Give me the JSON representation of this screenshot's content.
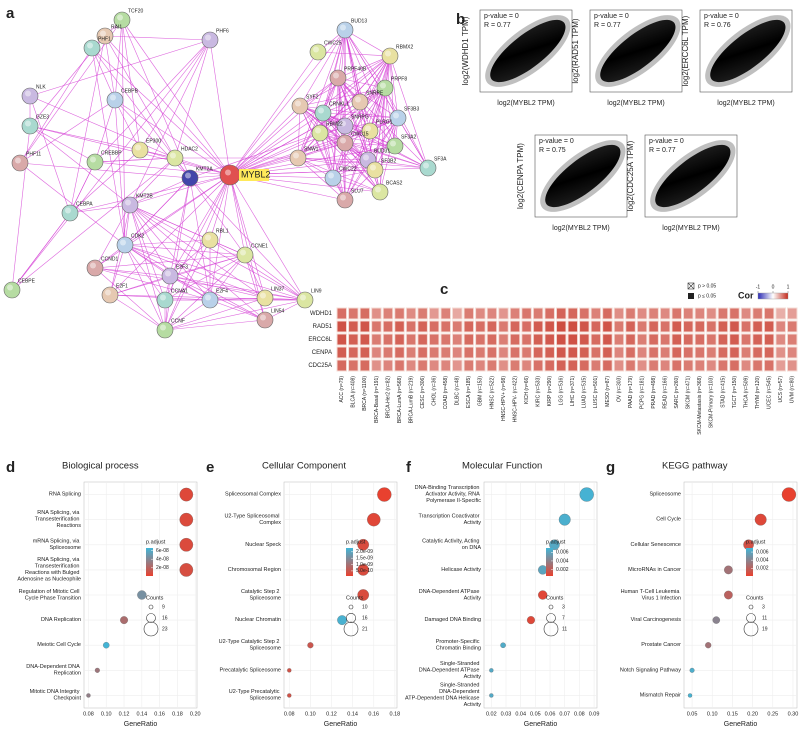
{
  "panel_labels": [
    "a",
    "b",
    "c",
    "d",
    "e",
    "f",
    "g"
  ],
  "network": {
    "nodes": [
      "TCF20",
      "RAI1",
      "PHF6",
      "PHF1",
      "BUD13",
      "RBMX2",
      "CWC25",
      "PRPF40B",
      "PRPF8",
      "SNRPE",
      "NLK",
      "GZE3",
      "CEBPB",
      "EP300",
      "HDAC2",
      "PHF11",
      "CREBBP",
      "SYF2",
      "SNRPG",
      "CRNKL1",
      "SF3B3",
      "PLRG1",
      "RBM22",
      "CWC15",
      "SF3A2",
      "SNW1",
      "BUD31",
      "SF3A",
      "CWC22",
      "SF3B2",
      "BCAS2",
      "SLU7",
      "MYBL2",
      "KMT2A",
      "KMT2B",
      "CEBPA",
      "CDK2",
      "RBL1",
      "CCNE1",
      "CCND1",
      "CEBPE",
      "E2F1",
      "E2F3",
      "CCNA1",
      "E2F4",
      "LIN37",
      "LIN9",
      "LIN54",
      "CCNF"
    ]
  },
  "chart_data": [
    {
      "type": "scatter",
      "annotations": [
        "p-value = 0",
        "R = 0.77"
      ],
      "x_label": "log2(MYBL2 TPM)",
      "y_label": "log2(WDHD1 TPM)"
    },
    {
      "type": "scatter",
      "annotations": [
        "p-value = 0",
        "R = 0.77"
      ],
      "x_label": "log2(MYBL2 TPM)",
      "y_label": "log2(RAD51 TPM)"
    },
    {
      "type": "scatter",
      "annotations": [
        "p-value = 0",
        "R = 0.76"
      ],
      "x_label": "log2(MYBL2 TPM)",
      "y_label": "log2(ERCC6L TPM)"
    },
    {
      "type": "scatter",
      "annotations": [
        "p-value = 0",
        "R = 0.75"
      ],
      "x_label": "log2(MYBL2 TPM)",
      "y_label": "log2(CENPA TPM)"
    },
    {
      "type": "scatter",
      "annotations": [
        "p-value = 0",
        "R = 0.77"
      ],
      "x_label": "log2(MYBL2 TPM)",
      "y_label": "log2(CDC25A TPM)"
    },
    {
      "type": "heatmap",
      "rows": [
        "WDHD1",
        "RAD51",
        "ERCC6L",
        "CENPA",
        "CDC25A"
      ],
      "columns": [
        "ACC (n=79)",
        "BLCA (n=408)",
        "BRCA (n=1100)",
        "BRCA-Basal (n=191)",
        "BRCA-Her2 (n=82)",
        "BRCA-LumA (n=568)",
        "BRCA-LumB (n=219)",
        "CESC (n=306)",
        "CHOL (n=36)",
        "COAD (n=458)",
        "DLBC (n=48)",
        "ESCA (n=185)",
        "GBM (n=153)",
        "HNSC (n=522)",
        "HNSC-HPV+ (n=98)",
        "HNSC-HPV- (n=422)",
        "KICH (n=66)",
        "KIRC (n=533)",
        "KIRP (n=290)",
        "LGG (n=516)",
        "LIHC (n=371)",
        "LUAD (n=515)",
        "LUSC (n=501)",
        "MESO (n=87)",
        "OV (n=303)",
        "PAAD (n=179)",
        "PCPG (n=181)",
        "PRAD (n=498)",
        "READ (n=166)",
        "SARC (n=260)",
        "SKCM (n=471)",
        "SKCM-Metastasis (n=368)",
        "SKCM-Primary (n=103)",
        "STAD (n=415)",
        "TGCT (n=150)",
        "THCA (n=509)",
        "THYM (n=120)",
        "UCEC (n=545)",
        "UCS (n=57)",
        "UVM (n=80)"
      ],
      "values": [
        [
          0.62,
          0.58,
          0.63,
          0.45,
          0.52,
          0.56,
          0.47,
          0.55,
          0.4,
          0.52,
          0.33,
          0.55,
          0.48,
          0.5,
          0.42,
          0.52,
          0.58,
          0.55,
          0.62,
          0.68,
          0.66,
          0.6,
          0.52,
          0.64,
          0.46,
          0.55,
          0.47,
          0.52,
          0.48,
          0.58,
          0.52,
          0.5,
          0.46,
          0.57,
          0.6,
          0.48,
          0.55,
          0.58,
          0.3,
          0.38
        ],
        [
          0.78,
          0.72,
          0.76,
          0.58,
          0.62,
          0.7,
          0.6,
          0.68,
          0.62,
          0.6,
          0.55,
          0.66,
          0.62,
          0.66,
          0.56,
          0.66,
          0.62,
          0.72,
          0.76,
          0.8,
          0.8,
          0.76,
          0.66,
          0.76,
          0.56,
          0.68,
          0.56,
          0.66,
          0.6,
          0.72,
          0.66,
          0.65,
          0.6,
          0.7,
          0.74,
          0.6,
          0.7,
          0.72,
          0.5,
          0.56
        ],
        [
          0.76,
          0.7,
          0.74,
          0.55,
          0.6,
          0.68,
          0.58,
          0.66,
          0.6,
          0.58,
          0.52,
          0.64,
          0.6,
          0.64,
          0.54,
          0.64,
          0.6,
          0.7,
          0.74,
          0.78,
          0.78,
          0.74,
          0.64,
          0.74,
          0.54,
          0.66,
          0.54,
          0.64,
          0.58,
          0.7,
          0.64,
          0.62,
          0.58,
          0.68,
          0.72,
          0.58,
          0.68,
          0.7,
          0.48,
          0.54
        ],
        [
          0.72,
          0.66,
          0.7,
          0.5,
          0.56,
          0.64,
          0.54,
          0.62,
          0.56,
          0.55,
          0.5,
          0.6,
          0.56,
          0.6,
          0.5,
          0.6,
          0.56,
          0.66,
          0.7,
          0.74,
          0.74,
          0.7,
          0.6,
          0.7,
          0.5,
          0.62,
          0.5,
          0.6,
          0.54,
          0.66,
          0.6,
          0.58,
          0.54,
          0.64,
          0.68,
          0.54,
          0.64,
          0.66,
          0.44,
          0.5
        ],
        [
          0.65,
          0.6,
          0.64,
          0.44,
          0.5,
          0.58,
          0.48,
          0.56,
          0.48,
          0.5,
          0.42,
          0.55,
          0.5,
          0.55,
          0.45,
          0.55,
          0.5,
          0.6,
          0.64,
          0.68,
          0.68,
          0.64,
          0.55,
          0.64,
          0.45,
          0.56,
          0.45,
          0.55,
          0.5,
          0.6,
          0.55,
          0.52,
          0.48,
          0.58,
          0.62,
          0.48,
          0.58,
          0.6,
          0.38,
          0.44
        ]
      ],
      "legend_title": "Cor",
      "clim": [
        -1,
        1
      ],
      "colorbar_ticks": [
        -1,
        0,
        1
      ],
      "significance_labels": [
        "p > 0.05",
        "p ≤ 0.05"
      ]
    },
    {
      "type": "dot",
      "title": "Biological process",
      "x_label": "GeneRatio",
      "categories": [
        "RNA Splicing",
        "RNA Splicing, via Transesterification Reactions",
        "mRNA Splicing, via Spliceosome",
        "RNA Splicing, via Transesterification Reactions with Bulged Adenosine as Nucleophile",
        "Regulation of Mitotic Cell Cycle Phase Transition",
        "DNA Replication",
        "Meiotic Cell Cycle",
        "DNA-Dependent DNA Replication",
        "Mitotic DNA Integrity Checkpoint"
      ],
      "values": [
        0.19,
        0.19,
        0.19,
        0.19,
        0.14,
        0.12,
        0.1,
        0.09,
        0.08
      ],
      "counts": [
        22,
        22,
        22,
        22,
        16,
        14,
        12,
        10,
        9
      ],
      "p_adjust": [
        5e-09,
        6e-09,
        6e-09,
        8e-09,
        4.5e-08,
        2.5e-08,
        6.5e-08,
        3e-08,
        3.5e-08
      ],
      "xlim": [
        0.075,
        0.202
      ],
      "xticks": [
        0.08,
        {
          "value": 0.1,
          "label": "0.10"
        },
        0.12,
        0.14,
        0.16,
        0.18,
        {
          "value": 0.2,
          "label": "0.20"
        }
      ],
      "color_title": "p.adjust",
      "clim": [
        1e-09,
        6.6e-08
      ],
      "color_ticks": [
        {
          "value": 6e-08,
          "label": "6e-08"
        },
        {
          "value": 4e-08,
          "label": "4e-08"
        },
        {
          "value": 2e-08,
          "label": "2e-08"
        }
      ],
      "size_title": "Counts",
      "size_ticks": [
        9,
        16,
        23
      ]
    },
    {
      "type": "dot",
      "title": "Cellular Component",
      "x_label": "GeneRatio",
      "categories": [
        "Spliceosomal Complex",
        "U2-Type Spliceosomal Complex",
        "Nuclear Speck",
        "Chromosomal Region",
        "Catalytic Step 2 Spliceosome",
        "Nuclear Chromatin",
        "U2-Type Catalytic Step 2 Spliceosome",
        "Precatalytic Spliceosome",
        "U2-Type Precatalytic Spliceosome"
      ],
      "values": [
        0.17,
        0.16,
        0.15,
        0.15,
        0.15,
        0.13,
        0.1,
        0.08,
        0.08
      ],
      "counts": [
        21,
        20,
        18,
        18,
        18,
        16,
        12,
        10,
        10
      ],
      "p_adjust": [
        1e-10,
        2e-10,
        3e-10,
        3e-10,
        3e-10,
        2.2e-09,
        5e-10,
        4e-10,
        4e-10
      ],
      "xlim": [
        0.075,
        0.182
      ],
      "xticks": [
        0.08,
        {
          "value": 0.1,
          "label": "0.10"
        },
        0.12,
        0.14,
        0.16,
        0.18
      ],
      "color_title": "p.adjust",
      "clim": [
        1e-10,
        2.3e-09
      ],
      "color_ticks": [
        {
          "value": 2e-09,
          "label": "2.0e-09"
        },
        {
          "value": 1.5e-09,
          "label": "1.5e-09"
        },
        {
          "value": 1e-09,
          "label": "1.0e-09"
        },
        {
          "value": 5e-10,
          "label": "5.0e-10"
        }
      ],
      "size_title": "Counts",
      "size_ticks": [
        10,
        16,
        21
      ]
    },
    {
      "type": "dot",
      "title": "Molecular Function",
      "x_label": "GeneRatio",
      "categories": [
        "DNA-Binding Transcription Activator Activity, RNA Polymerase II-Specific",
        "Transcription Coactivator Activity",
        "Catalytic Activity, Acting on DNA",
        "Helicase Activity",
        "DNA-Dependent ATPase Activity",
        "Damaged DNA Binding",
        "Promoter-Specific Chromatin Binding",
        "Single-Stranded DNA-Dependent ATPase Activity",
        "Single-Stranded DNA-Dependent ATP-Dependent DNA Helicase Activity"
      ],
      "values": [
        0.085,
        0.07,
        0.063,
        0.055,
        0.055,
        0.047,
        0.028,
        0.02,
        0.02
      ],
      "counts": [
        11,
        9,
        8,
        7,
        7,
        6,
        4,
        3,
        3
      ],
      "p_adjust": [
        0.0068,
        0.0066,
        0.0062,
        0.006,
        0.0008,
        0.0009,
        0.0064,
        0.0063,
        0.0063
      ],
      "xlim": [
        0.015,
        0.092
      ],
      "xticks": [
        0.02,
        0.03,
        0.04,
        0.05,
        0.06,
        0.07,
        0.08,
        0.09
      ],
      "color_title": "p.adjust",
      "clim": [
        0.0005,
        0.007
      ],
      "color_ticks": [
        0.006,
        0.004,
        0.002
      ],
      "size_title": "Counts",
      "size_ticks": [
        3,
        7,
        11
      ]
    },
    {
      "type": "dot",
      "title": "KEGG pathway",
      "x_label": "GeneRatio",
      "categories": [
        "Spliceosome",
        "Cell Cycle",
        "Cellular Senescence",
        "MicroRNAs in Cancer",
        "Human T-Cell Leukemia Virus 1 Infection",
        "Viral Carcinogenesis",
        "Prostate Cancer",
        "Notch Signaling Pathway",
        "Mismatch Repair"
      ],
      "values": [
        0.29,
        0.22,
        0.19,
        0.14,
        0.14,
        0.11,
        0.09,
        0.05,
        0.045
      ],
      "counts": [
        19,
        15,
        13,
        10,
        10,
        8,
        6,
        4,
        3
      ],
      "p_adjust": [
        0.0001,
        0.0005,
        0.001,
        0.003,
        0.002,
        0.004,
        0.003,
        0.0065,
        0.0068
      ],
      "xlim": [
        0.03,
        0.31
      ],
      "xticks": [
        0.05,
        {
          "value": 0.1,
          "label": "0.10"
        },
        0.15,
        {
          "value": 0.2,
          "label": "0.20"
        },
        0.25,
        {
          "value": 0.3,
          "label": "0.30"
        }
      ],
      "color_title": "p.adjust",
      "clim": [
        0.0001,
        0.007
      ],
      "color_ticks": [
        0.006,
        0.004,
        0.002
      ],
      "size_title": "Counts",
      "size_ticks": [
        3,
        11,
        19
      ]
    }
  ]
}
